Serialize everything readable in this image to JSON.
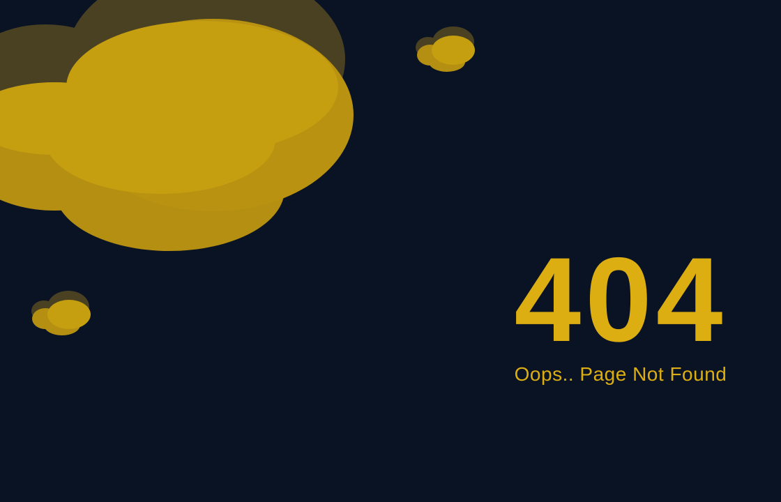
{
  "colors": {
    "background": "#0a1324",
    "accent": "#ddae12",
    "cloud_front": "#c59f10",
    "cloud_mid": "#b58f12",
    "cloud_back": "#4a4122"
  },
  "error": {
    "code": "404",
    "message": "Oops.. Page Not Found"
  },
  "decorations": [
    "cloud-large",
    "cloud-small-top",
    "cloud-small-left"
  ]
}
